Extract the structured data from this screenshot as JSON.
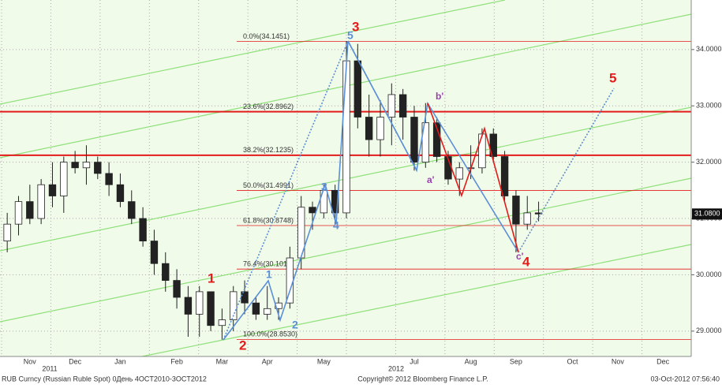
{
  "chart_data": {
    "type": "candlestick",
    "categories": [
      null,
      null,
      "Nov",
      null,
      null,
      null,
      "Dec",
      null,
      null,
      null,
      "Jan",
      null,
      null,
      null,
      null,
      "Feb",
      null,
      null,
      null,
      "Mar",
      null,
      null,
      null,
      "Apr",
      null,
      null,
      null,
      null,
      "May",
      null,
      null,
      null,
      null,
      null,
      null,
      null,
      "Jul",
      null,
      null,
      null,
      null,
      "Aug",
      null,
      null,
      null,
      "Sep",
      null,
      null,
      null,
      null,
      "Oct",
      null,
      null,
      null,
      "Nov",
      null,
      null,
      null,
      "Dec",
      null,
      null
    ],
    "open": [
      30.6,
      30.9,
      31.3,
      31.0,
      31.6,
      31.4,
      32.0,
      31.9,
      32.0,
      31.8,
      31.6,
      31.3,
      31.0,
      30.6,
      30.2,
      29.9,
      29.6,
      29.3,
      29.7,
      29.1,
      29.2,
      29.7,
      29.5,
      29.3,
      29.4,
      29.5,
      30.3,
      31.2,
      31.1,
      31.5,
      31.1,
      33.8,
      32.8,
      32.4,
      32.8,
      33.2,
      32.8,
      32.0,
      32.7,
      32.1,
      31.7,
      31.9,
      31.9,
      32.5,
      32.1,
      31.4,
      30.9,
      31.1,
      null,
      null,
      null,
      null,
      null,
      null,
      null,
      null,
      null,
      null,
      null,
      null,
      null
    ],
    "high": [
      31.1,
      31.4,
      31.6,
      31.7,
      32.0,
      32.1,
      32.2,
      32.3,
      32.1,
      32.0,
      31.8,
      31.5,
      31.2,
      30.8,
      30.4,
      30.1,
      29.8,
      29.8,
      29.7,
      29.4,
      29.8,
      29.9,
      29.6,
      29.8,
      29.6,
      30.5,
      31.4,
      31.3,
      31.6,
      31.6,
      34.15,
      34.1,
      33.2,
      33.1,
      33.4,
      33.3,
      33.0,
      33.05,
      32.8,
      32.2,
      32.0,
      32.3,
      32.6,
      32.6,
      32.2,
      31.5,
      31.4,
      31.3,
      null,
      null,
      null,
      null,
      null,
      null,
      null,
      null,
      null,
      null,
      null,
      null,
      null
    ],
    "low": [
      30.4,
      30.7,
      30.9,
      30.9,
      31.2,
      31.1,
      31.8,
      31.6,
      31.7,
      31.4,
      31.2,
      30.9,
      30.5,
      30.0,
      29.7,
      29.4,
      28.9,
      28.9,
      29.0,
      28.85,
      29.0,
      29.3,
      29.2,
      29.2,
      29.2,
      29.4,
      30.1,
      30.8,
      31.0,
      30.9,
      31.0,
      32.6,
      32.1,
      32.1,
      32.3,
      32.4,
      31.85,
      31.9,
      32.0,
      31.6,
      31.4,
      31.7,
      31.8,
      32.0,
      31.3,
      30.4,
      30.8,
      30.95,
      null,
      null,
      null,
      null,
      null,
      null,
      null,
      null,
      null,
      null,
      null,
      null,
      null
    ],
    "close": [
      30.9,
      31.3,
      31.0,
      31.6,
      31.4,
      32.0,
      31.9,
      32.0,
      31.8,
      31.6,
      31.3,
      31.0,
      30.6,
      30.2,
      29.9,
      29.6,
      29.3,
      29.7,
      29.1,
      29.2,
      29.7,
      29.5,
      29.3,
      29.4,
      29.5,
      30.3,
      31.2,
      31.1,
      31.5,
      31.1,
      33.8,
      32.8,
      32.4,
      32.8,
      33.2,
      32.8,
      32.0,
      32.7,
      32.1,
      31.7,
      31.9,
      31.9,
      32.5,
      32.1,
      31.4,
      30.9,
      31.1,
      31.08,
      null,
      null,
      null,
      null,
      null,
      null,
      null,
      null,
      null,
      null,
      null,
      null,
      null
    ],
    "ylim": [
      28.55,
      34.88
    ],
    "yticks": [
      {
        "value": 29,
        "label": "29.0000"
      },
      {
        "value": 30,
        "label": "30.0000"
      },
      {
        "value": 31,
        "label": "31.0000"
      },
      {
        "value": 32,
        "label": "32.0000"
      },
      {
        "value": 33,
        "label": "33.0000"
      },
      {
        "value": 34,
        "label": "34.0000"
      }
    ],
    "grid": true,
    "last_price": {
      "value": 31.08,
      "label": "31.0800"
    },
    "fib_levels": [
      {
        "value": 34.1451,
        "label": "0.0%(34.1451)",
        "style": "thin"
      },
      {
        "value": 32.8962,
        "label": "23.6%(32.8962)",
        "style": "thick"
      },
      {
        "value": 32.1235,
        "label": "38.2%(32.1235)",
        "style": "thick"
      },
      {
        "value": 31.4991,
        "label": "50.0%(31.4991)",
        "style": "thin"
      },
      {
        "value": 30.8748,
        "label": "61.8%(30.8748)",
        "style": "thin"
      },
      {
        "value": 30.1019,
        "label": "76.4%(30.1019)",
        "style": "thin"
      },
      {
        "value": 28.853,
        "label": "100.0%(28.8530)",
        "style": "thin"
      }
    ],
    "years": [
      "2011",
      "2012"
    ],
    "waves": {
      "red": [
        "1",
        "2",
        "3",
        "4",
        "5"
      ],
      "blue": [
        "1",
        "2",
        "3",
        "4",
        "5"
      ],
      "purple": [
        "a'",
        "b'",
        "c'"
      ]
    },
    "footer": {
      "left": "RUB Curncy (Russian Ruble Spot) 0День 4OCT2010-3OCT2012",
      "center": "Copyright© 2012 Bloomberg Finance L.P.",
      "right": "03-Oct-2012 07:56:40"
    }
  }
}
